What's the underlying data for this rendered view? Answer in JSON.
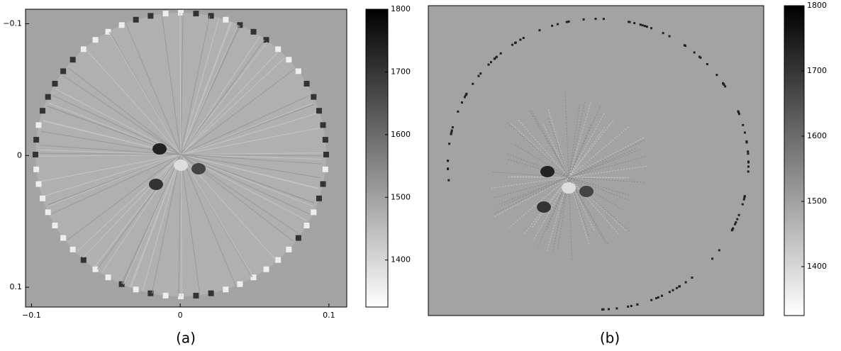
{
  "chart_data": [
    {
      "type": "image",
      "caption": "(a)",
      "xlim": [
        -0.104,
        0.112
      ],
      "xticks": [
        {
          "value": -0.1,
          "label": "−0.1"
        },
        0,
        0.1
      ],
      "ylim": [
        -0.111,
        0.115
      ],
      "yticks": [
        {
          "value": -0.1,
          "label": "−0.1"
        },
        0,
        0.1
      ],
      "clim": [
        1325,
        1800
      ],
      "cticks": [
        1400,
        1500,
        1600,
        1700,
        1800
      ]
    },
    {
      "type": "image",
      "caption": "(b)",
      "clim": [
        1325,
        1800
      ],
      "cticks": [
        1400,
        1500,
        1600,
        1700,
        1800
      ]
    }
  ]
}
